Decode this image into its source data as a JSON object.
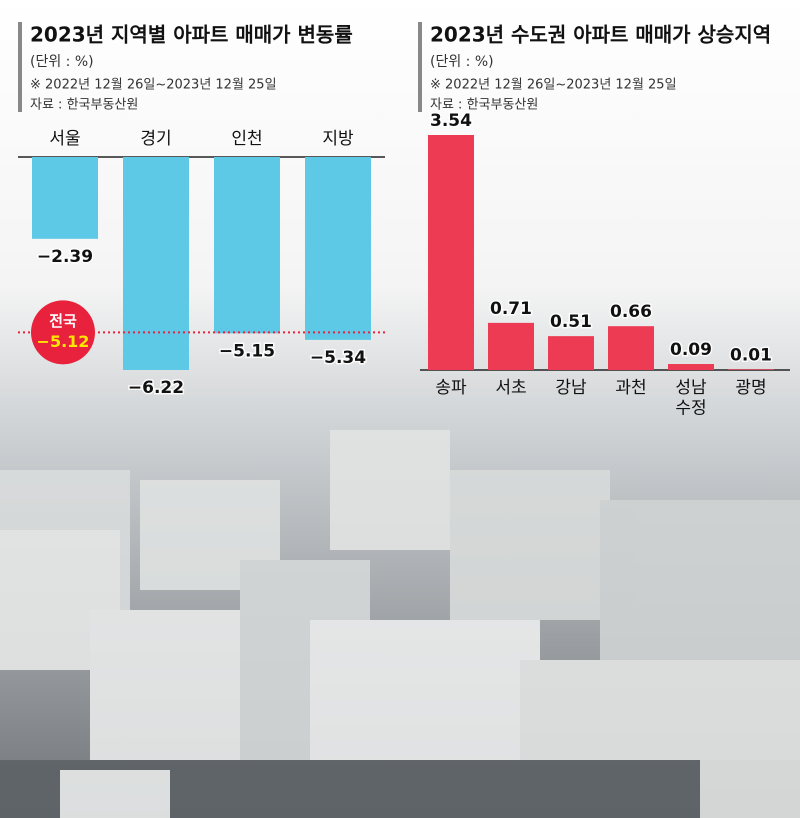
{
  "chart_data": [
    {
      "type": "bar",
      "title": "2023년 지역별 아파트 매매가 변동률",
      "subtitle": "(단위 : %)",
      "notes": [
        "※ 2022년 12월 26일~2023년 12월 25일",
        "자료 : 한국부동산원"
      ],
      "categories": [
        "서울",
        "경기",
        "인천",
        "지방"
      ],
      "values": [
        -2.39,
        -6.22,
        -5.15,
        -5.34
      ],
      "value_labels": [
        "−2.39",
        "−6.22",
        "−5.15",
        "−5.34"
      ],
      "color": "#5ec9e6",
      "reference": {
        "label": "전국",
        "value": -5.12,
        "value_label": "−5.12",
        "color": "#e8213c"
      }
    },
    {
      "type": "bar",
      "title": "2023년 수도권 아파트 매매가 상승지역",
      "subtitle": "(단위 : %)",
      "notes": [
        "※ 2022년 12월 26일~2023년 12월 25일",
        "자료 : 한국부동산원"
      ],
      "categories": [
        "송파",
        "서초",
        "강남",
        "과천",
        "성남\n수정",
        "광명"
      ],
      "values": [
        3.54,
        0.71,
        0.51,
        0.66,
        0.09,
        0.01
      ],
      "color": "#ec3b52"
    }
  ]
}
